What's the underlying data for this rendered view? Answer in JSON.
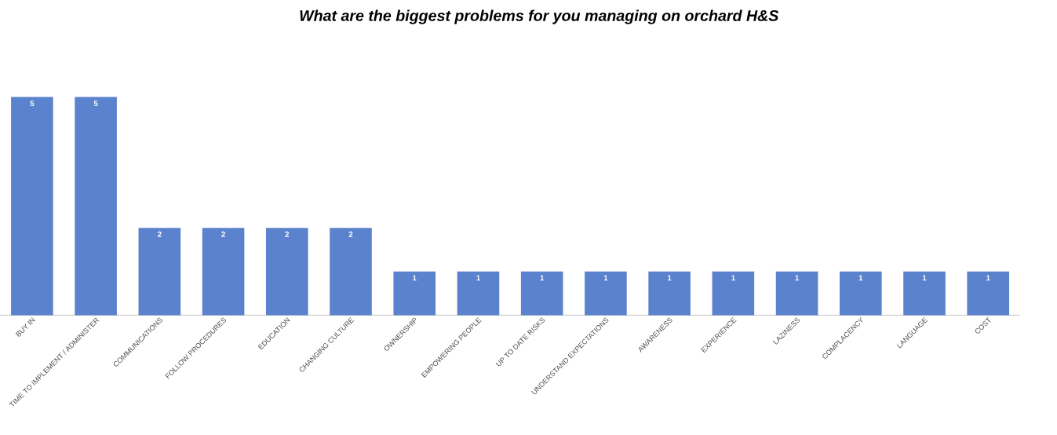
{
  "chart_data": {
    "type": "bar",
    "title": "What are the biggest problems for you managing on orchard H&S",
    "categories": [
      "BUY IN",
      "TIME TO IMPLEMENT / ADMINISTER",
      "COMMUNICATIONS",
      "FOLLOW PROCEDURES",
      "EDUCATION",
      "CHANGING CULTURE",
      "OWNERSHIP",
      "EMPOWERING PEOPLE",
      "UP TO DATE RISKS",
      "UNDERSTAND EXPECTATIONS",
      "AWARENESS",
      "EXPERIENCE",
      "LAZINESS",
      "COMPLACENCY",
      "LANGUAGE",
      "COST"
    ],
    "values": [
      5,
      5,
      2,
      2,
      2,
      2,
      1,
      1,
      1,
      1,
      1,
      1,
      1,
      1,
      1,
      1
    ],
    "color": "#5b82cc",
    "tick_labels": "x",
    "data_labels": true
  }
}
